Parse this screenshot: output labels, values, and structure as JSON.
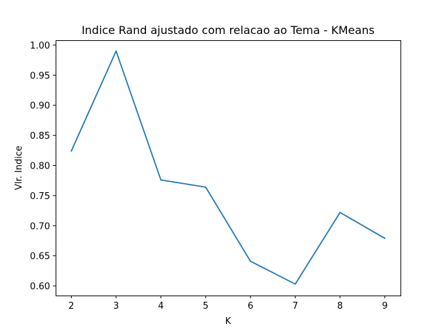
{
  "chart_data": {
    "type": "line",
    "title": "Indice Rand ajustado com relacao ao Tema - KMeans",
    "xlabel": "K",
    "ylabel": "Vlr. Indice",
    "x": [
      2,
      3,
      4,
      5,
      6,
      7,
      8,
      9
    ],
    "series": [
      {
        "values": [
          0.824,
          0.99,
          0.776,
          0.764,
          0.641,
          0.603,
          0.722,
          0.679
        ]
      }
    ],
    "xlim": [
      1.65,
      9.35
    ],
    "ylim": [
      0.584,
      1.008
    ],
    "xticks": [
      "2",
      "3",
      "4",
      "5",
      "6",
      "7",
      "8",
      "9"
    ],
    "yticks": [
      "0.60",
      "0.65",
      "0.70",
      "0.75",
      "0.80",
      "0.85",
      "0.90",
      "0.95",
      "1.00"
    ],
    "grid": false,
    "line_color": "#1f77b4"
  }
}
